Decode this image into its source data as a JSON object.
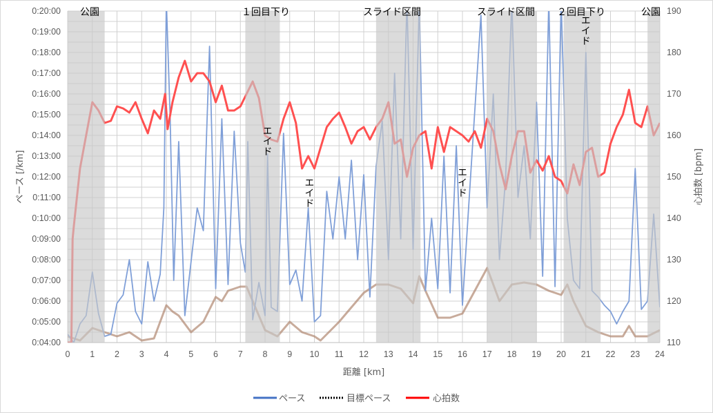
{
  "chart_data": {
    "type": "line",
    "title": "",
    "xlabel": "距離 [km]",
    "ylabel_left": "ペース [/km]",
    "ylabel_right": "心拍数 [bpm]",
    "xlim": [
      0,
      24
    ],
    "x_ticks": [
      "0",
      "1",
      "2",
      "3",
      "4",
      "5",
      "6",
      "7",
      "8",
      "9",
      "10",
      "11",
      "12",
      "13",
      "14",
      "15",
      "16",
      "17",
      "18",
      "19",
      "20",
      "21",
      "22",
      "23",
      "24"
    ],
    "ylim_left": [
      "0:04:00",
      "0:20:00"
    ],
    "y_ticks_left": [
      "0:04:00",
      "0:05:00",
      "0:06:00",
      "0:07:00",
      "0:08:00",
      "0:09:00",
      "0:10:00",
      "0:11:00",
      "0:12:00",
      "0:13:00",
      "0:14:00",
      "0:15:00",
      "0:16:00",
      "0:17:00",
      "0:18:00",
      "0:19:00",
      "0:20:00"
    ],
    "ylim_right": [
      110,
      190
    ],
    "y_ticks_right": [
      "110",
      "120",
      "130",
      "140",
      "150",
      "160",
      "170",
      "180",
      "190"
    ],
    "grid": true,
    "legend_position": "bottom",
    "legend": [
      {
        "name": "ペース",
        "color": "#4472c4",
        "style": "solid"
      },
      {
        "name": "目標ペース",
        "color": "#000000",
        "style": "dotted"
      },
      {
        "name": "心拍数",
        "color": "#ff0000",
        "style": "solid"
      }
    ],
    "series": [
      {
        "name": "ペース",
        "axis": "left",
        "color": "#7f9fd8",
        "x": [
          0,
          0.25,
          0.5,
          0.75,
          1,
          1.25,
          1.5,
          1.75,
          2,
          2.25,
          2.5,
          2.75,
          3,
          3.25,
          3.5,
          3.75,
          3.9,
          4,
          4.15,
          4.3,
          4.5,
          4.75,
          5,
          5.25,
          5.5,
          5.75,
          6,
          6.25,
          6.5,
          6.75,
          7,
          7.2,
          7.3,
          7.5,
          7.75,
          8,
          8.1,
          8.25,
          8.5,
          8.75,
          9,
          9.25,
          9.5,
          9.75,
          10,
          10.25,
          10.5,
          10.75,
          11,
          11.25,
          11.5,
          11.75,
          12,
          12.25,
          12.5,
          12.75,
          13,
          13.25,
          13.5,
          13.75,
          14,
          14.25,
          14.5,
          14.75,
          15,
          15.25,
          15.5,
          15.75,
          16,
          16.25,
          16.5,
          16.75,
          17,
          17.25,
          17.5,
          17.75,
          18,
          18.25,
          18.5,
          18.75,
          19,
          19.25,
          19.5,
          19.75,
          20,
          20.25,
          20.5,
          20.75,
          21,
          21.25,
          21.5,
          21.75,
          22,
          22.25,
          22.5,
          22.75,
          23,
          23.25,
          23.5,
          23.75,
          24
        ],
        "y": [
          "0:04:24",
          "0:04:00",
          "0:04:54",
          "0:05:18",
          "0:07:24",
          "0:05:24",
          "0:04:18",
          "0:04:24",
          "0:05:54",
          "0:06:18",
          "0:08:00",
          "0:05:30",
          "0:04:54",
          "0:07:54",
          "0:06:00",
          "0:07:18",
          "0:10:30",
          "0:20:30",
          "0:15:00",
          "0:07:00",
          "0:13:42",
          "0:05:18",
          "0:07:54",
          "0:10:30",
          "0:09:24",
          "0:18:18",
          "0:06:36",
          "0:14:48",
          "0:06:48",
          "0:14:12",
          "0:08:48",
          "0:07:24",
          "0:13:42",
          "0:05:06",
          "0:06:54",
          "0:05:18",
          "0:13:06",
          "0:05:42",
          "0:05:30",
          "0:14:06",
          "0:06:48",
          "0:07:30",
          "0:06:00",
          "0:10:30",
          "0:05:00",
          "0:05:18",
          "0:11:18",
          "0:09:00",
          "0:12:00",
          "0:09:00",
          "0:12:48",
          "0:08:00",
          "0:12:06",
          "0:06:12",
          "0:12:30",
          "0:14:42",
          "0:08:00",
          "0:17:00",
          "0:09:00",
          "0:20:30",
          "0:08:30",
          "0:20:30",
          "0:06:30",
          "0:10:00",
          "0:06:36",
          "0:13:00",
          "0:06:24",
          "0:13:30",
          "0:05:48",
          "0:10:30",
          "0:15:12",
          "0:19:48",
          "0:10:30",
          "0:16:00",
          "0:08:00",
          "0:12:00",
          "0:20:30",
          "0:11:00",
          "0:13:30",
          "0:09:00",
          "0:15:36",
          "0:07:12",
          "0:20:30",
          "0:06:42",
          "0:20:30",
          "0:10:00",
          "0:07:00",
          "0:06:36",
          "0:18:00",
          "0:06:30",
          "0:06:12",
          "0:05:48",
          "0:05:30",
          "0:04:54",
          "0:05:30",
          "0:06:00",
          "0:12:24",
          "0:05:36",
          "0:06:00",
          "0:10:12",
          "0:05:42"
        ]
      },
      {
        "axis": "left",
        "color": "#b08870",
        "x": [
          0,
          0.5,
          1,
          1.5,
          2,
          2.5,
          3,
          3.5,
          4,
          4.25,
          4.5,
          5,
          5.5,
          6,
          6.25,
          6.5,
          7,
          7.25,
          7.5,
          8,
          8.5,
          9,
          9.5,
          10,
          10.25,
          10.5,
          11,
          11.5,
          12,
          12.5,
          13,
          13.5,
          14,
          14.25,
          14.5,
          15,
          15.5,
          16,
          16.5,
          17,
          17.5,
          18,
          18.5,
          19,
          19.5,
          20,
          20.25,
          20.5,
          21,
          21.5,
          22,
          22.5,
          22.75,
          23,
          23.5,
          24
        ],
        "y": [
          "0:04:18",
          "0:04:06",
          "0:04:42",
          "0:04:30",
          "0:04:18",
          "0:04:30",
          "0:04:06",
          "0:04:12",
          "0:05:48",
          "0:05:30",
          "0:05:18",
          "0:04:30",
          "0:05:00",
          "0:06:12",
          "0:06:00",
          "0:06:30",
          "0:06:42",
          "0:06:42",
          "0:06:00",
          "0:04:36",
          "0:04:18",
          "0:05:00",
          "0:04:30",
          "0:04:18",
          "0:04:06",
          "0:04:24",
          "0:05:00",
          "0:05:42",
          "0:06:24",
          "0:06:48",
          "0:06:48",
          "0:06:36",
          "0:05:54",
          "0:07:12",
          "0:06:30",
          "0:05:12",
          "0:05:12",
          "0:05:24",
          "0:06:30",
          "0:07:36",
          "0:06:00",
          "0:06:48",
          "0:06:54",
          "0:06:48",
          "0:06:30",
          "0:06:18",
          "0:06:48",
          "0:06:00",
          "0:04:48",
          "0:04:30",
          "0:04:18",
          "0:04:18",
          "0:04:48",
          "0:04:18",
          "0:04:18",
          "0:04:36"
        ]
      },
      {
        "name": "心拍数",
        "axis": "right",
        "color": "#ff5050",
        "x": [
          0,
          0.15,
          0.2,
          0.25,
          0.5,
          0.75,
          1,
          1.25,
          1.5,
          1.75,
          2,
          2.25,
          2.5,
          2.75,
          3,
          3.25,
          3.5,
          3.75,
          3.95,
          4.05,
          4.25,
          4.5,
          4.75,
          5,
          5.25,
          5.5,
          5.75,
          6,
          6.25,
          6.5,
          6.75,
          7,
          7.25,
          7.5,
          7.75,
          8,
          8.25,
          8.5,
          8.75,
          9,
          9.25,
          9.5,
          9.75,
          10,
          10.25,
          10.5,
          10.75,
          11,
          11.25,
          11.5,
          11.75,
          12,
          12.25,
          12.5,
          12.75,
          13,
          13.25,
          13.5,
          13.75,
          14,
          14.25,
          14.5,
          14.75,
          15,
          15.25,
          15.5,
          15.75,
          16,
          16.25,
          16.5,
          16.75,
          17,
          17.25,
          17.5,
          17.75,
          18,
          18.25,
          18.5,
          18.75,
          19,
          19.25,
          19.5,
          19.75,
          20,
          20.25,
          20.5,
          20.75,
          21,
          21.25,
          21.5,
          21.75,
          22,
          22.25,
          22.5,
          22.75,
          23,
          23.25,
          23.5,
          23.75,
          24
        ],
        "y": [
          110,
          110,
          135,
          138,
          152,
          160,
          168,
          166,
          163,
          163.5,
          167,
          166.5,
          165.5,
          168,
          164,
          160.5,
          166,
          164,
          170,
          161.5,
          168,
          174,
          178,
          173,
          175,
          175,
          173,
          168,
          172,
          166,
          166,
          167,
          170,
          173,
          169,
          160,
          159,
          158.5,
          164,
          168,
          163,
          152,
          155,
          152,
          157,
          162,
          164,
          165.5,
          162,
          158,
          161,
          162,
          159,
          162,
          164,
          168,
          158,
          159,
          150,
          157,
          160,
          161,
          152,
          162,
          156,
          162,
          161,
          160,
          158.5,
          161,
          157,
          164,
          161,
          153,
          147,
          155,
          161,
          161,
          151,
          154,
          151.5,
          155,
          150,
          149,
          146,
          153,
          148,
          156,
          157,
          150,
          151,
          158,
          162,
          165,
          171,
          163,
          162,
          167,
          160,
          163
        ]
      }
    ],
    "shaded_regions": [
      {
        "label": "公園",
        "x": [
          0,
          1.5
        ]
      },
      {
        "label": "１回目下り",
        "x": [
          7.2,
          8.6
        ]
      },
      {
        "label": "スライド区間",
        "x": [
          12.5,
          14.3
        ]
      },
      {
        "label": "スライド区間",
        "x": [
          17.0,
          19.0
        ]
      },
      {
        "label": "２回目下り",
        "x": [
          20.1,
          21.6
        ]
      },
      {
        "label": "公園",
        "x": [
          23.5,
          24
        ]
      }
    ],
    "annotations": [
      {
        "text": "エイド",
        "x": 8.1,
        "y": "0:14:00"
      },
      {
        "text": "エイド",
        "x": 9.8,
        "y": "0:11:30"
      },
      {
        "text": "エイド",
        "x": 16.0,
        "y": "0:12:00"
      },
      {
        "text": "エイド",
        "x": 21.0,
        "y": "0:19:20"
      }
    ]
  }
}
